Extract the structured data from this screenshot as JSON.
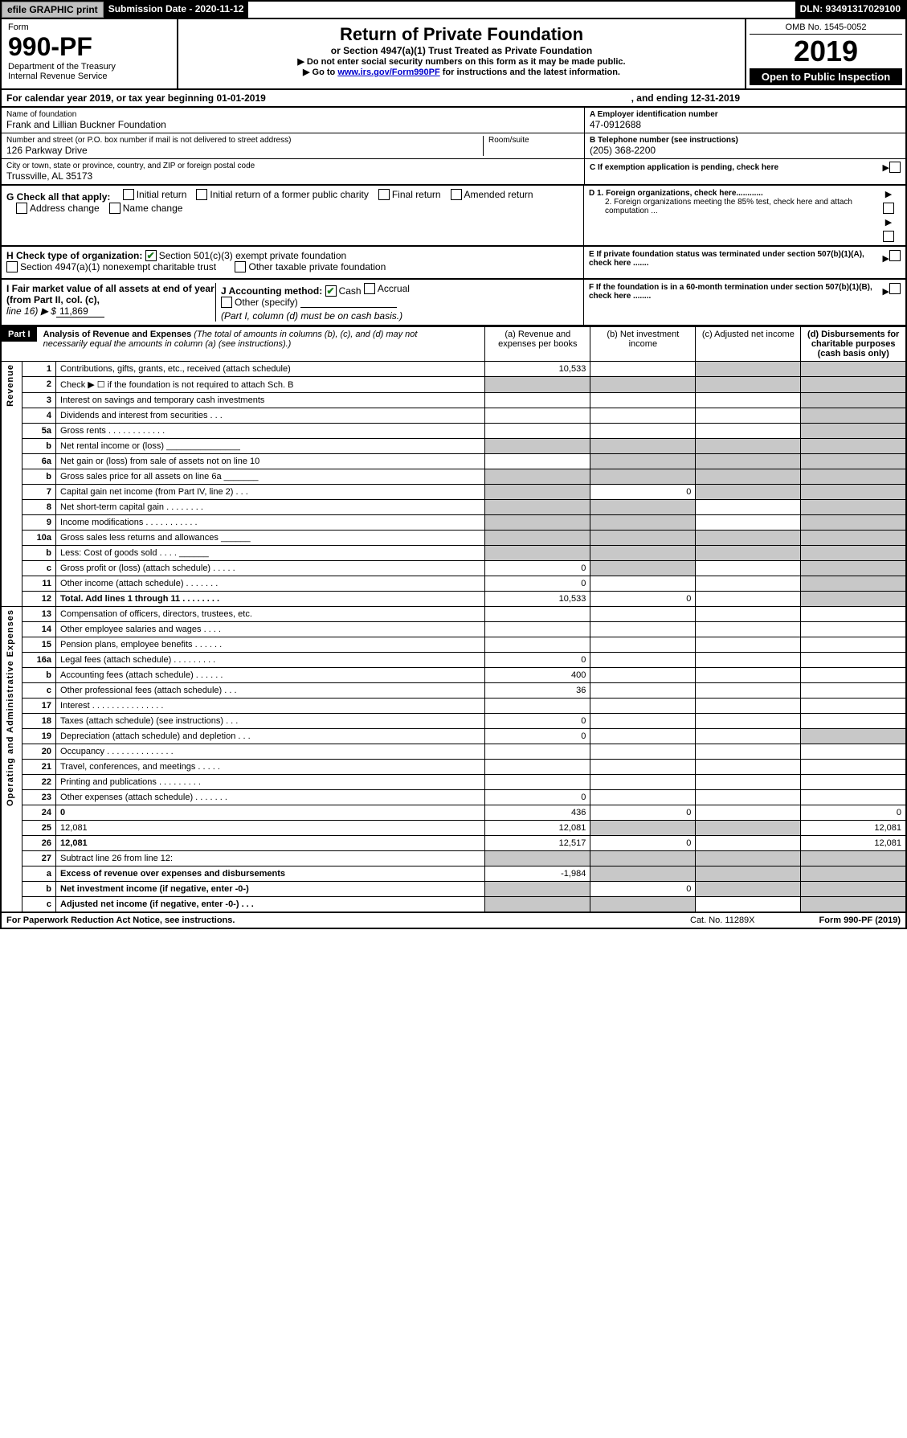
{
  "top_bar": {
    "efile": "efile GRAPHIC print",
    "submission": "Submission Date - 2020-11-12",
    "dln": "DLN: 93491317029100"
  },
  "header": {
    "form_label": "Form",
    "form_no": "990-PF",
    "dept": "Department of the Treasury",
    "irs": "Internal Revenue Service",
    "title": "Return of Private Foundation",
    "subtitle": "or Section 4947(a)(1) Trust Treated as Private Foundation",
    "instr1": "▶ Do not enter social security numbers on this form as it may be made public.",
    "instr2_pre": "▶ Go to ",
    "instr2_link": "www.irs.gov/Form990PF",
    "instr2_post": " for instructions and the latest information.",
    "omb": "OMB No. 1545-0052",
    "year": "2019",
    "open": "Open to Public Inspection"
  },
  "cal_year": {
    "text": "For calendar year 2019, or tax year beginning 01-01-2019",
    "end": ", and ending 12-31-2019"
  },
  "foundation": {
    "name_label": "Name of foundation",
    "name": "Frank and Lillian Buckner Foundation",
    "addr_label": "Number and street (or P.O. box number if mail is not delivered to street address)",
    "room_label": "Room/suite",
    "addr": "126 Parkway Drive",
    "city_label": "City or town, state or province, country, and ZIP or foreign postal code",
    "city": "Trussville, AL  35173",
    "ein_label": "A Employer identification number",
    "ein": "47-0912688",
    "phone_label": "B Telephone number (see instructions)",
    "phone": "(205) 368-2200",
    "c_label": "C If exemption application is pending, check here"
  },
  "g_section": {
    "label": "G Check all that apply:",
    "items": [
      "Initial return",
      "Initial return of a former public charity",
      "Final return",
      "Amended return",
      "Address change",
      "Name change"
    ]
  },
  "h_section": {
    "label": "H Check type of organization:",
    "opt1": "Section 501(c)(3) exempt private foundation",
    "opt2": "Section 4947(a)(1) nonexempt charitable trust",
    "opt3": "Other taxable private foundation"
  },
  "d_section": {
    "d1": "D 1. Foreign organizations, check here............",
    "d2": "2. Foreign organizations meeting the 85% test, check here and attach computation ...",
    "e": "E  If private foundation status was terminated under section 507(b)(1)(A), check here .......",
    "f": "F  If the foundation is in a 60-month termination under section 507(b)(1)(B), check here ........"
  },
  "i_section": {
    "label": "I Fair market value of all assets at end of year (from Part II, col. (c),",
    "line": "line 16) ▶ $",
    "value": "11,869"
  },
  "j_section": {
    "label": "J Accounting method:",
    "cash": "Cash",
    "accrual": "Accrual",
    "other": "Other (specify)",
    "note": "(Part I, column (d) must be on cash basis.)"
  },
  "part1": {
    "header": "Part I",
    "title": "Analysis of Revenue and Expenses",
    "desc": "(The total of amounts in columns (b), (c), and (d) may not necessarily equal the amounts in column (a) (see instructions).)",
    "col_a": "(a)   Revenue and expenses per books",
    "col_b": "(b)  Net investment income",
    "col_c": "(c)  Adjusted net income",
    "col_d": "(d)  Disbursements for charitable purposes (cash basis only)"
  },
  "revenue_label": "Revenue",
  "expenses_label": "Operating and Administrative Expenses",
  "rows": [
    {
      "n": "1",
      "d": "Contributions, gifts, grants, etc., received (attach schedule)",
      "a": "10,533",
      "shade_c": true,
      "shade_d": true
    },
    {
      "n": "2",
      "d": "Check ▶ ☐ if the foundation is not required to attach Sch. B",
      "shade_a": true,
      "shade_b": true,
      "shade_c": true,
      "shade_d": true
    },
    {
      "n": "3",
      "d": "Interest on savings and temporary cash investments",
      "shade_d": true
    },
    {
      "n": "4",
      "d": "Dividends and interest from securities  .  .  .",
      "shade_d": true
    },
    {
      "n": "5a",
      "d": "Gross rents   .  .  .  .  .  .  .  .  .  .  .  .",
      "shade_d": true
    },
    {
      "n": "b",
      "d": "Net rental income or (loss) _______________",
      "shade_a": true,
      "shade_b": true,
      "shade_c": true,
      "shade_d": true
    },
    {
      "n": "6a",
      "d": "Net gain or (loss) from sale of assets not on line 10",
      "shade_b": true,
      "shade_c": true,
      "shade_d": true
    },
    {
      "n": "b",
      "d": "Gross sales price for all assets on line 6a _______",
      "shade_a": true,
      "shade_b": true,
      "shade_c": true,
      "shade_d": true
    },
    {
      "n": "7",
      "d": "Capital gain net income (from Part IV, line 2)  .  .  .",
      "shade_a": true,
      "b": "0",
      "shade_c": true,
      "shade_d": true
    },
    {
      "n": "8",
      "d": "Net short-term capital gain  .  .  .  .  .  .  .  .",
      "shade_a": true,
      "shade_b": true,
      "shade_d": true
    },
    {
      "n": "9",
      "d": "Income modifications .  .  .  .  .  .  .  .  .  .  .",
      "shade_a": true,
      "shade_b": true,
      "shade_d": true
    },
    {
      "n": "10a",
      "d": "Gross sales less returns and allowances ______",
      "shade_a": true,
      "shade_b": true,
      "shade_c": true,
      "shade_d": true
    },
    {
      "n": "b",
      "d": "Less: Cost of goods sold   .  .  .  . ______",
      "shade_a": true,
      "shade_b": true,
      "shade_c": true,
      "shade_d": true
    },
    {
      "n": "c",
      "d": "Gross profit or (loss) (attach schedule)  .  .  .  .  .",
      "a": "0",
      "shade_b": true,
      "shade_d": true
    },
    {
      "n": "11",
      "d": "Other income (attach schedule)  .  .  .  .  .  .  .",
      "a": "0",
      "shade_d": true
    },
    {
      "n": "12",
      "d": "Total. Add lines 1 through 11  .  .  .  .  .  .  .  .",
      "bold": true,
      "a": "10,533",
      "b": "0",
      "shade_d": true
    }
  ],
  "exp_rows": [
    {
      "n": "13",
      "d": "Compensation of officers, directors, trustees, etc."
    },
    {
      "n": "14",
      "d": "Other employee salaries and wages  .  .  .  ."
    },
    {
      "n": "15",
      "d": "Pension plans, employee benefits  .  .  .  .  .  ."
    },
    {
      "n": "16a",
      "d": "Legal fees (attach schedule) .  .  .  .  .  .  .  .  .",
      "a": "0"
    },
    {
      "n": "b",
      "d": "Accounting fees (attach schedule)  .  .  .  .  .  .",
      "a": "400"
    },
    {
      "n": "c",
      "d": "Other professional fees (attach schedule)  .  .  .",
      "a": "36"
    },
    {
      "n": "17",
      "d": "Interest  .  .  .  .  .  .  .  .  .  .  .  .  .  .  ."
    },
    {
      "n": "18",
      "d": "Taxes (attach schedule) (see instructions)  .  .  .",
      "a": "0"
    },
    {
      "n": "19",
      "d": "Depreciation (attach schedule) and depletion  .  .  .",
      "a": "0",
      "shade_d": true
    },
    {
      "n": "20",
      "d": "Occupancy .  .  .  .  .  .  .  .  .  .  .  .  .  ."
    },
    {
      "n": "21",
      "d": "Travel, conferences, and meetings  .  .  .  .  ."
    },
    {
      "n": "22",
      "d": "Printing and publications .  .  .  .  .  .  .  .  ."
    },
    {
      "n": "23",
      "d": "Other expenses (attach schedule)  .  .  .  .  .  .  .",
      "a": "0"
    },
    {
      "n": "24",
      "d": "0",
      "bold": true,
      "a": "436",
      "b": "0"
    },
    {
      "n": "25",
      "d": "12,081",
      "a": "12,081",
      "shade_b": true,
      "shade_c": true
    },
    {
      "n": "26",
      "d": "12,081",
      "bold": true,
      "a": "12,517",
      "b": "0"
    },
    {
      "n": "27",
      "d": "Subtract line 26 from line 12:",
      "shade_a": true,
      "shade_b": true,
      "shade_c": true,
      "shade_d": true
    },
    {
      "n": "a",
      "d": "Excess of revenue over expenses and disbursements",
      "bold": true,
      "a": "-1,984",
      "shade_b": true,
      "shade_c": true,
      "shade_d": true
    },
    {
      "n": "b",
      "d": "Net investment income (if negative, enter -0-)",
      "bold": true,
      "shade_a": true,
      "b": "0",
      "shade_c": true,
      "shade_d": true
    },
    {
      "n": "c",
      "d": "Adjusted net income (if negative, enter -0-)  .  .  .",
      "bold": true,
      "shade_a": true,
      "shade_b": true,
      "shade_d": true
    }
  ],
  "footer": {
    "left": "For Paperwork Reduction Act Notice, see instructions.",
    "mid": "Cat. No. 11289X",
    "right": "Form 990-PF (2019)"
  },
  "colors": {
    "black": "#000000",
    "shade": "#c8c8c8",
    "link": "#0000cc",
    "check": "#1a7a1a"
  }
}
